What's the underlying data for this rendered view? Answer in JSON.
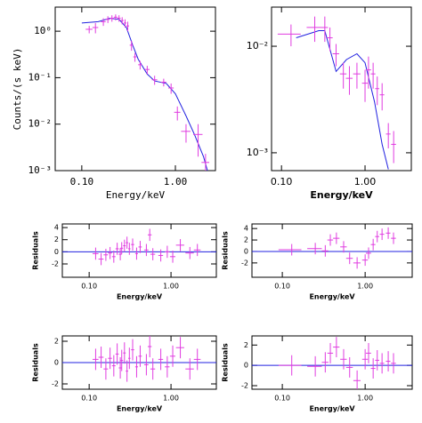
{
  "chart_data": [
    {
      "type": "errorbar",
      "xlabel": "Energy/keV",
      "ylabel": "Counts/(s keV)",
      "xlog": true,
      "ylog": true,
      "xlim": [
        0.052,
        2.68
      ],
      "ylim": [
        0.001,
        3.3
      ],
      "xticks": [
        {
          "value": 0.1,
          "label": "0.10"
        },
        {
          "value": 1,
          "label": "1.00"
        }
      ],
      "yticks": [
        {
          "value": 1,
          "label": "10⁰"
        },
        {
          "value": 0.1,
          "label": "10⁻¹"
        },
        {
          "value": 0.01,
          "label": "10⁻²"
        },
        {
          "value": 0.001,
          "label": "10⁻³"
        }
      ],
      "data": {
        "color": "#e03ce0",
        "x": [
          0.12,
          0.14,
          0.17,
          0.19,
          0.21,
          0.23,
          0.25,
          0.27,
          0.29,
          0.31,
          0.34,
          0.37,
          0.42,
          0.5,
          0.6,
          0.75,
          0.9,
          1.05,
          1.3,
          1.75,
          2.1
        ],
        "y": [
          1.1,
          1.2,
          1.6,
          1.8,
          1.9,
          2.0,
          1.9,
          1.7,
          1.5,
          1.3,
          0.5,
          0.28,
          0.19,
          0.15,
          0.09,
          0.08,
          0.06,
          0.018,
          0.007,
          0.006,
          0.0015
        ],
        "xerr": [
          0.01,
          0.01,
          0.01,
          0.01,
          0.01,
          0.01,
          0.01,
          0.01,
          0.01,
          0.01,
          0.015,
          0.015,
          0.02,
          0.03,
          0.04,
          0.05,
          0.06,
          0.08,
          0.15,
          0.2,
          0.2
        ],
        "yerr": [
          0.2,
          0.3,
          0.3,
          0.3,
          0.3,
          0.3,
          0.3,
          0.3,
          0.3,
          0.3,
          0.12,
          0.06,
          0.04,
          0.03,
          0.02,
          0.015,
          0.015,
          0.006,
          0.003,
          0.004,
          0.0008
        ]
      },
      "model": {
        "color": "#2020e0",
        "x": [
          0.1,
          0.15,
          0.2,
          0.25,
          0.3,
          0.35,
          0.4,
          0.5,
          0.6,
          0.8,
          1.0,
          1.3,
          1.6,
          2.0,
          2.2
        ],
        "y": [
          1.5,
          1.6,
          1.9,
          1.8,
          1.2,
          0.5,
          0.25,
          0.12,
          0.085,
          0.075,
          0.045,
          0.015,
          0.006,
          0.002,
          0.001
        ]
      }
    },
    {
      "type": "errorbar",
      "xlabel": "Energy/keV",
      "xlog": true,
      "ylog": true,
      "xlim": [
        0.076,
        3.58
      ],
      "ylim": [
        0.00068,
        0.0233
      ],
      "xticks": [
        {
          "value": 0.1,
          "label": "0.10"
        },
        {
          "value": 1,
          "label": "1.00"
        }
      ],
      "yticks": [
        {
          "value": 0.01,
          "label": "10⁻²"
        },
        {
          "value": 0.001,
          "label": "10⁻³"
        }
      ],
      "data": {
        "color": "#e03ce0",
        "x": [
          0.13,
          0.25,
          0.33,
          0.38,
          0.45,
          0.55,
          0.65,
          0.8,
          1.0,
          1.1,
          1.25,
          1.4,
          1.6,
          1.9,
          2.2
        ],
        "y": [
          0.013,
          0.015,
          0.015,
          0.012,
          0.0085,
          0.0055,
          0.005,
          0.0055,
          0.0045,
          0.006,
          0.0055,
          0.004,
          0.0035,
          0.0015,
          0.0012
        ],
        "xerr": [
          0.04,
          0.05,
          0.03,
          0.03,
          0.04,
          0.05,
          0.06,
          0.08,
          0.08,
          0.08,
          0.08,
          0.08,
          0.1,
          0.12,
          0.15
        ],
        "yerr": [
          0.003,
          0.004,
          0.004,
          0.003,
          0.002,
          0.0015,
          0.0015,
          0.0015,
          0.0015,
          0.002,
          0.0015,
          0.0012,
          0.001,
          0.0004,
          0.0004
        ]
      },
      "model": {
        "color": "#2020e0",
        "x": [
          0.15,
          0.28,
          0.33,
          0.45,
          0.6,
          0.8,
          1.0,
          1.3,
          1.6,
          1.9
        ],
        "y": [
          0.012,
          0.014,
          0.014,
          0.0058,
          0.0075,
          0.0085,
          0.007,
          0.003,
          0.0012,
          0.0007
        ]
      }
    },
    {
      "type": "errorbar",
      "xlabel": "Energy/keV",
      "ylabel": "Residuals",
      "xlog": true,
      "ylog": false,
      "xlim": [
        0.047,
        3.58
      ],
      "ylim": [
        -4.2,
        4.6
      ],
      "hline": 0,
      "hline_color": "#2020e0",
      "xticks": [
        {
          "value": 0.1,
          "label": "0.10"
        },
        {
          "value": 1,
          "label": "1.00"
        }
      ],
      "yticks": [
        4,
        2,
        0,
        -2
      ],
      "data": {
        "color": "#e03ce0",
        "x": [
          0.12,
          0.14,
          0.16,
          0.18,
          0.2,
          0.22,
          0.24,
          0.25,
          0.27,
          0.29,
          0.31,
          0.34,
          0.38,
          0.42,
          0.5,
          0.55,
          0.6,
          0.75,
          0.9,
          1.05,
          1.3,
          1.7,
          2.1
        ],
        "y": [
          -0.3,
          -1.2,
          -0.5,
          -0.2,
          -0.8,
          0.5,
          -0.4,
          0.6,
          1.0,
          1.5,
          0.5,
          1.2,
          -0.3,
          0.8,
          0.3,
          2.8,
          -0.4,
          -0.6,
          0,
          -0.8,
          1.1,
          -0.2,
          0.3
        ],
        "xerr": [
          0.01,
          0.01,
          0.01,
          0.01,
          0.01,
          0.01,
          0.01,
          0.01,
          0.01,
          0.01,
          0.01,
          0.015,
          0.015,
          0.02,
          0.03,
          0.03,
          0.04,
          0.05,
          0.06,
          0.08,
          0.15,
          0.2,
          0.2
        ],
        "yerr": [
          1,
          1,
          1,
          1,
          1,
          1,
          1,
          1,
          1,
          1,
          1,
          1,
          1,
          1,
          1,
          1,
          1,
          1,
          1,
          1,
          1,
          1,
          1
        ]
      }
    },
    {
      "type": "errorbar",
      "xlabel": "Energy/keV",
      "ylabel": "Residuals",
      "xlog": true,
      "ylog": false,
      "xlim": [
        0.043,
        3.7
      ],
      "ylim": [
        -4.5,
        4.8
      ],
      "hline": 0,
      "hline_color": "#2020e0",
      "xticks": [
        {
          "value": 0.1,
          "label": "0.10"
        },
        {
          "value": 1,
          "label": "1.00"
        }
      ],
      "yticks": [
        4,
        2,
        0,
        -2
      ],
      "data": {
        "color": "#e03ce0",
        "x": [
          0.13,
          0.25,
          0.33,
          0.38,
          0.45,
          0.55,
          0.65,
          0.8,
          1.0,
          1.1,
          1.25,
          1.4,
          1.6,
          1.9,
          2.2
        ],
        "y": [
          0.3,
          0.5,
          0.1,
          2.0,
          2.3,
          0.8,
          -1.2,
          -2.0,
          -1.5,
          -0.3,
          1.2,
          2.6,
          3.0,
          3.2,
          2.3
        ],
        "xerr": [
          0.04,
          0.05,
          0.03,
          0.03,
          0.04,
          0.05,
          0.06,
          0.08,
          0.08,
          0.08,
          0.08,
          0.08,
          0.1,
          0.12,
          0.15
        ],
        "yerr": [
          1,
          1,
          1,
          1,
          1,
          1,
          1,
          1,
          1,
          1,
          1,
          1,
          1,
          1,
          1
        ]
      }
    },
    {
      "type": "errorbar",
      "xlabel": "Energy/keV",
      "ylabel": "Residuals",
      "xlog": true,
      "ylog": false,
      "xlim": [
        0.047,
        3.58
      ],
      "ylim": [
        -2.5,
        2.5
      ],
      "hline": 0,
      "hline_color": "#2020e0",
      "xticks": [
        {
          "value": 0.1,
          "label": "0.10"
        },
        {
          "value": 1,
          "label": "1.00"
        }
      ],
      "yticks": [
        2,
        0,
        -2
      ],
      "data": {
        "color": "#e03ce0",
        "x": [
          0.12,
          0.14,
          0.16,
          0.18,
          0.2,
          0.22,
          0.24,
          0.25,
          0.27,
          0.29,
          0.31,
          0.34,
          0.38,
          0.42,
          0.5,
          0.55,
          0.6,
          0.75,
          0.9,
          1.05,
          1.3,
          1.7,
          2.1
        ],
        "y": [
          0.3,
          0.5,
          -0.6,
          0.4,
          -0.3,
          0.8,
          -0.5,
          0.2,
          0.9,
          -0.8,
          0.4,
          1.2,
          -0.4,
          0.6,
          -0.2,
          1.5,
          -0.6,
          0.3,
          -0.4,
          0.6,
          1.4,
          -0.6,
          0.3
        ],
        "xerr": [
          0.01,
          0.01,
          0.01,
          0.01,
          0.01,
          0.01,
          0.01,
          0.01,
          0.01,
          0.01,
          0.01,
          0.015,
          0.015,
          0.02,
          0.03,
          0.03,
          0.04,
          0.05,
          0.06,
          0.08,
          0.15,
          0.2,
          0.2
        ],
        "yerr": [
          1,
          1,
          1,
          1,
          1,
          1,
          1,
          1,
          1,
          1,
          1,
          1,
          1,
          1,
          1,
          1,
          1,
          1,
          1,
          1,
          1,
          1,
          1
        ]
      }
    },
    {
      "type": "errorbar",
      "xlabel": "Energy/keV",
      "ylabel": "Residuals",
      "xlog": true,
      "ylog": false,
      "xlim": [
        0.043,
        3.7
      ],
      "ylim": [
        -2.35,
        2.9
      ],
      "hline": 0,
      "hline_color": "#2020e0",
      "xticks": [
        {
          "value": 0.1,
          "label": "0.10"
        },
        {
          "value": 1,
          "label": "1.00"
        }
      ],
      "yticks": [
        2,
        0,
        -2
      ],
      "data": {
        "color": "#e03ce0",
        "x": [
          0.13,
          0.25,
          0.33,
          0.38,
          0.45,
          0.55,
          0.65,
          0.8,
          1.0,
          1.1,
          1.25,
          1.4,
          1.6,
          1.9,
          2.2
        ],
        "y": [
          0,
          -0.1,
          0.3,
          1.2,
          1.8,
          0.6,
          -0.2,
          -1.5,
          0.6,
          1.2,
          -0.3,
          0.5,
          0.2,
          0.4,
          0.2
        ],
        "xerr": [
          0.04,
          0.05,
          0.03,
          0.03,
          0.04,
          0.05,
          0.06,
          0.08,
          0.08,
          0.08,
          0.08,
          0.08,
          0.1,
          0.12,
          0.15
        ],
        "yerr": [
          1,
          1,
          1,
          1,
          1,
          1,
          1,
          1,
          1,
          1,
          1,
          1,
          1,
          1,
          1
        ]
      }
    }
  ]
}
